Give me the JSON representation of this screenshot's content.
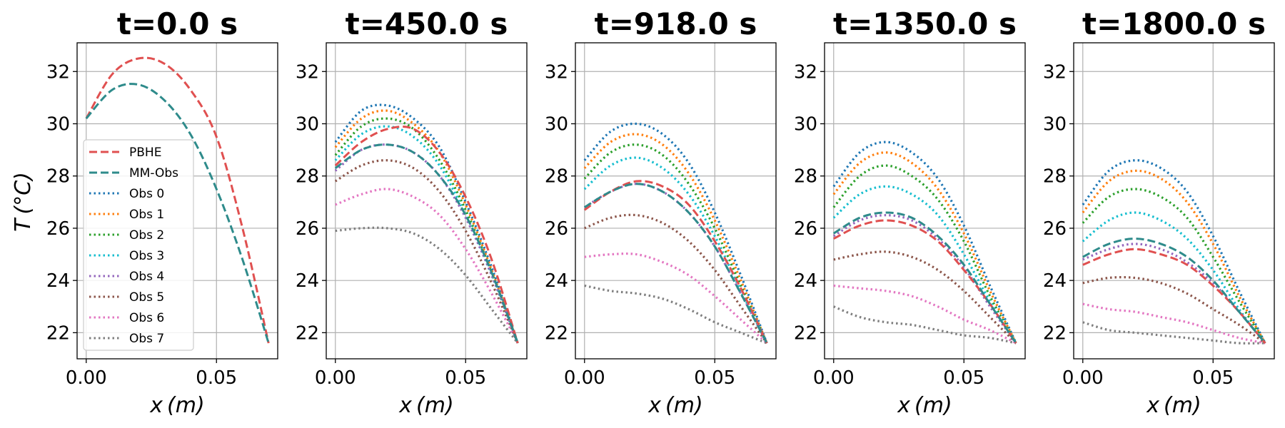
{
  "chart_data": {
    "type": "line",
    "xlabel": "x (m)",
    "ylabel": "T (°C)",
    "xlim": [
      -0.0035,
      0.0735
    ],
    "ylim": [
      21,
      33.1
    ],
    "xticks": [
      0.0,
      0.05
    ],
    "xtick_labels": [
      "0.00",
      "0.05"
    ],
    "yticks": [
      22,
      24,
      26,
      28,
      30,
      32
    ],
    "ytick_labels": [
      "22",
      "24",
      "26",
      "28",
      "30",
      "32"
    ],
    "grid": true,
    "legend_position": "lower-left of first panel",
    "x": [
      0.0,
      0.01,
      0.02,
      0.03,
      0.04,
      0.05,
      0.06,
      0.07
    ],
    "series_styles": [
      {
        "name": "PBHE",
        "color": "#e05050",
        "dash": "dashed"
      },
      {
        "name": "MM-Obs",
        "color": "#2e8b8b",
        "dash": "dashed"
      },
      {
        "name": "Obs 0",
        "color": "#1f77b4",
        "dash": "dotted"
      },
      {
        "name": "Obs 1",
        "color": "#ff7f0e",
        "dash": "dotted"
      },
      {
        "name": "Obs 2",
        "color": "#2ca02c",
        "dash": "dotted"
      },
      {
        "name": "Obs 3",
        "color": "#17becf",
        "dash": "dotted"
      },
      {
        "name": "Obs 4",
        "color": "#9467bd",
        "dash": "dotted"
      },
      {
        "name": "Obs 5",
        "color": "#8c564b",
        "dash": "dotted"
      },
      {
        "name": "Obs 6",
        "color": "#e377c2",
        "dash": "dotted"
      },
      {
        "name": "Obs 7",
        "color": "#7f7f7f",
        "dash": "dotted"
      }
    ],
    "panels": [
      {
        "title": "t=0.0 s",
        "series": [
          {
            "name": "PBHE",
            "values": [
              30.2,
              31.9,
              32.5,
              32.3,
              31.3,
              29.5,
              26.0,
              21.6
            ]
          },
          {
            "name": "MM-Obs",
            "values": [
              30.2,
              31.3,
              31.5,
              30.9,
              29.6,
              27.5,
              24.8,
              21.6
            ]
          }
        ]
      },
      {
        "title": "t=450.0 s",
        "series": [
          {
            "name": "PBHE",
            "values": [
              28.4,
              29.3,
              29.8,
              29.8,
              28.9,
              27.2,
              24.8,
              21.6
            ]
          },
          {
            "name": "MM-Obs",
            "values": [
              28.3,
              29.0,
              29.2,
              28.9,
              28.0,
              26.5,
              24.3,
              21.6
            ]
          },
          {
            "name": "Obs 0",
            "values": [
              29.3,
              30.5,
              30.7,
              30.2,
              29.1,
              27.0,
              24.5,
              21.6
            ]
          },
          {
            "name": "Obs 1",
            "values": [
              29.1,
              30.2,
              30.5,
              30.0,
              28.9,
              26.9,
              24.4,
              21.6
            ]
          },
          {
            "name": "Obs 2",
            "values": [
              28.8,
              29.9,
              30.2,
              29.8,
              28.6,
              26.7,
              24.3,
              21.6
            ]
          },
          {
            "name": "Obs 3",
            "values": [
              28.6,
              29.6,
              29.9,
              29.5,
              28.4,
              26.5,
              24.2,
              21.6
            ]
          },
          {
            "name": "Obs 4",
            "values": [
              28.2,
              29.0,
              29.2,
              28.9,
              28.0,
              26.4,
              24.2,
              21.6
            ]
          },
          {
            "name": "Obs 5",
            "values": [
              27.8,
              28.4,
              28.6,
              28.3,
              27.4,
              25.9,
              23.9,
              21.6
            ]
          },
          {
            "name": "Obs 6",
            "values": [
              26.9,
              27.3,
              27.5,
              27.2,
              26.5,
              25.2,
              23.5,
              21.6
            ]
          },
          {
            "name": "Obs 7",
            "values": [
              25.9,
              26.0,
              26.0,
              25.8,
              25.2,
              24.2,
              22.9,
              21.6
            ]
          }
        ]
      },
      {
        "title": "t=918.0 s",
        "series": [
          {
            "name": "PBHE",
            "values": [
              26.7,
              27.4,
              27.8,
              27.6,
              26.9,
              25.5,
              23.7,
              21.6
            ]
          },
          {
            "name": "MM-Obs",
            "values": [
              26.8,
              27.4,
              27.7,
              27.4,
              26.6,
              25.3,
              23.5,
              21.6
            ]
          },
          {
            "name": "Obs 0",
            "values": [
              28.6,
              29.7,
              30.0,
              29.6,
              28.5,
              26.6,
              24.2,
              21.6
            ]
          },
          {
            "name": "Obs 1",
            "values": [
              28.3,
              29.3,
              29.6,
              29.2,
              28.1,
              26.3,
              24.0,
              21.6
            ]
          },
          {
            "name": "Obs 2",
            "values": [
              27.9,
              28.9,
              29.2,
              28.8,
              27.7,
              26.0,
              23.8,
              21.6
            ]
          },
          {
            "name": "Obs 3",
            "values": [
              27.5,
              28.4,
              28.7,
              28.3,
              27.3,
              25.7,
              23.6,
              21.6
            ]
          },
          {
            "name": "Obs 4",
            "values": [
              26.8,
              27.4,
              27.7,
              27.4,
              26.6,
              25.3,
              23.5,
              21.6
            ]
          },
          {
            "name": "Obs 5",
            "values": [
              26.0,
              26.4,
              26.5,
              26.2,
              25.5,
              24.4,
              23.0,
              21.6
            ]
          },
          {
            "name": "Obs 6",
            "values": [
              24.9,
              25.0,
              25.0,
              24.7,
              24.2,
              23.4,
              22.5,
              21.6
            ]
          },
          {
            "name": "Obs 7",
            "values": [
              23.8,
              23.6,
              23.5,
              23.3,
              22.9,
              22.4,
              22.0,
              21.6
            ]
          }
        ]
      },
      {
        "title": "t=1350.0 s",
        "series": [
          {
            "name": "PBHE",
            "values": [
              25.6,
              26.1,
              26.3,
              26.1,
              25.5,
              24.4,
              23.1,
              21.6
            ]
          },
          {
            "name": "MM-Obs",
            "values": [
              25.8,
              26.4,
              26.6,
              26.4,
              25.7,
              24.6,
              23.1,
              21.6
            ]
          },
          {
            "name": "Obs 0",
            "values": [
              27.6,
              28.9,
              29.3,
              28.9,
              27.9,
              26.1,
              23.8,
              21.6
            ]
          },
          {
            "name": "Obs 1",
            "values": [
              27.3,
              28.5,
              28.9,
              28.5,
              27.5,
              25.8,
              23.6,
              21.6
            ]
          },
          {
            "name": "Obs 2",
            "values": [
              26.8,
              28.0,
              28.4,
              28.0,
              27.1,
              25.5,
              23.4,
              21.6
            ]
          },
          {
            "name": "Obs 3",
            "values": [
              26.4,
              27.3,
              27.6,
              27.3,
              26.5,
              25.0,
              23.2,
              21.6
            ]
          },
          {
            "name": "Obs 4",
            "values": [
              25.7,
              26.3,
              26.5,
              26.3,
              25.6,
              24.5,
              23.0,
              21.6
            ]
          },
          {
            "name": "Obs 5",
            "values": [
              24.8,
              25.0,
              25.1,
              24.9,
              24.4,
              23.6,
              22.6,
              21.6
            ]
          },
          {
            "name": "Obs 6",
            "values": [
              23.8,
              23.7,
              23.6,
              23.4,
              23.0,
              22.5,
              22.1,
              21.6
            ]
          },
          {
            "name": "Obs 7",
            "values": [
              23.0,
              22.6,
              22.4,
              22.3,
              22.1,
              21.9,
              21.8,
              21.6
            ]
          }
        ]
      },
      {
        "title": "t=1800.0 s",
        "series": [
          {
            "name": "PBHE",
            "values": [
              24.6,
              25.0,
              25.2,
              25.0,
              24.6,
              23.8,
              22.8,
              21.6
            ]
          },
          {
            "name": "MM-Obs",
            "values": [
              24.9,
              25.4,
              25.6,
              25.4,
              24.9,
              24.0,
              22.8,
              21.6
            ]
          },
          {
            "name": "Obs 0",
            "values": [
              26.9,
              28.2,
              28.6,
              28.3,
              27.4,
              25.7,
              23.6,
              21.6
            ]
          },
          {
            "name": "Obs 1",
            "values": [
              26.6,
              27.8,
              28.2,
              27.9,
              27.0,
              25.4,
              23.4,
              21.6
            ]
          },
          {
            "name": "Obs 2",
            "values": [
              26.2,
              27.2,
              27.5,
              27.2,
              26.4,
              24.9,
              23.2,
              21.6
            ]
          },
          {
            "name": "Obs 3",
            "values": [
              25.5,
              26.3,
              26.6,
              26.3,
              25.6,
              24.4,
              22.9,
              21.6
            ]
          },
          {
            "name": "Obs 4",
            "values": [
              24.8,
              25.2,
              25.4,
              25.2,
              24.7,
              23.9,
              22.8,
              21.6
            ]
          },
          {
            "name": "Obs 5",
            "values": [
              23.9,
              24.1,
              24.1,
              23.9,
              23.5,
              22.9,
              22.3,
              21.6
            ]
          },
          {
            "name": "Obs 6",
            "values": [
              23.1,
              22.9,
              22.8,
              22.6,
              22.4,
              22.1,
              21.8,
              21.6
            ]
          },
          {
            "name": "Obs 7",
            "values": [
              22.4,
              22.1,
              22.0,
              21.9,
              21.8,
              21.7,
              21.6,
              21.6
            ]
          }
        ]
      }
    ]
  }
}
